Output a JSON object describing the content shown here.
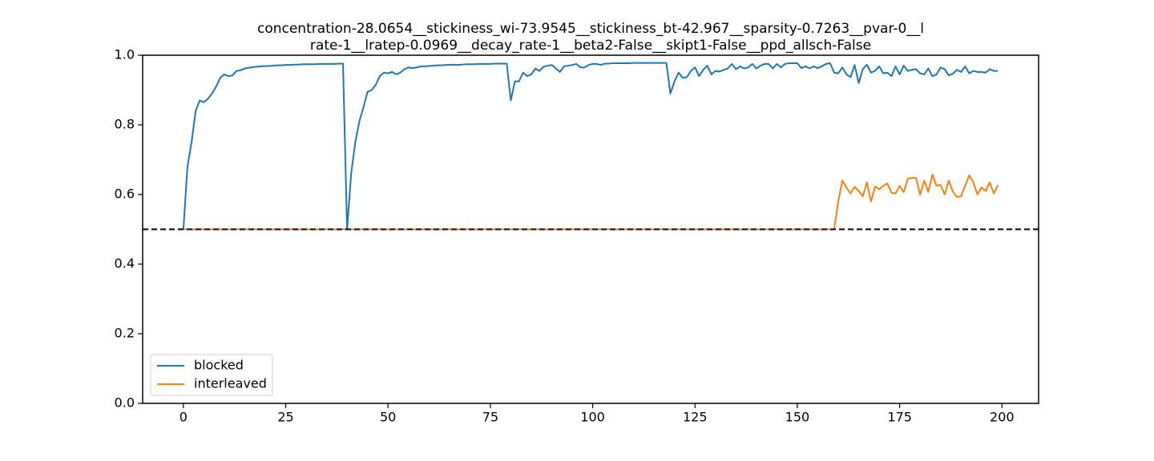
{
  "chart_data": {
    "type": "line",
    "title": [
      "concentration-28.0654__stickiness_wi-73.9545__stickiness_bt-42.967__sparsity-0.7263__pvar-0__l",
      "rate-1__lratep-0.0969__decay_rate-1__beta2-False__skipt1-False__ppd_allsch-False"
    ],
    "x": [
      0,
      1,
      2,
      3,
      4,
      5,
      6,
      7,
      8,
      9,
      10,
      11,
      12,
      13,
      14,
      15,
      16,
      17,
      18,
      19,
      20,
      21,
      22,
      23,
      24,
      25,
      26,
      27,
      28,
      29,
      30,
      31,
      32,
      33,
      34,
      35,
      36,
      37,
      38,
      39,
      40,
      41,
      42,
      43,
      44,
      45,
      46,
      47,
      48,
      49,
      50,
      51,
      52,
      53,
      54,
      55,
      56,
      57,
      58,
      59,
      60,
      61,
      62,
      63,
      64,
      65,
      66,
      67,
      68,
      69,
      70,
      71,
      72,
      73,
      74,
      75,
      76,
      77,
      78,
      79,
      80,
      81,
      82,
      83,
      84,
      85,
      86,
      87,
      88,
      89,
      90,
      91,
      92,
      93,
      94,
      95,
      96,
      97,
      98,
      99,
      100,
      101,
      102,
      103,
      104,
      105,
      106,
      107,
      108,
      109,
      110,
      111,
      112,
      113,
      114,
      115,
      116,
      117,
      118,
      119,
      120,
      121,
      122,
      123,
      124,
      125,
      126,
      127,
      128,
      129,
      130,
      131,
      132,
      133,
      134,
      135,
      136,
      137,
      138,
      139,
      140,
      141,
      142,
      143,
      144,
      145,
      146,
      147,
      148,
      149,
      150,
      151,
      152,
      153,
      154,
      155,
      156,
      157,
      158,
      159,
      160,
      161,
      162,
      163,
      164,
      165,
      166,
      167,
      168,
      169,
      170,
      171,
      172,
      173,
      174,
      175,
      176,
      177,
      178,
      179,
      180,
      181,
      182,
      183,
      184,
      185,
      186,
      187,
      188,
      189,
      190,
      191,
      192,
      193,
      194,
      195,
      196,
      197,
      198,
      199
    ],
    "series": [
      {
        "name": "blocked",
        "color": "#1f77b4",
        "values": [
          0.5,
          0.68,
          0.75,
          0.84,
          0.87,
          0.865,
          0.875,
          0.89,
          0.91,
          0.935,
          0.945,
          0.94,
          0.942,
          0.955,
          0.957,
          0.962,
          0.964,
          0.966,
          0.967,
          0.968,
          0.969,
          0.969,
          0.97,
          0.971,
          0.971,
          0.972,
          0.972,
          0.973,
          0.973,
          0.974,
          0.974,
          0.974,
          0.974,
          0.975,
          0.975,
          0.975,
          0.975,
          0.975,
          0.976,
          0.976,
          0.5,
          0.66,
          0.75,
          0.81,
          0.85,
          0.895,
          0.9,
          0.915,
          0.94,
          0.95,
          0.948,
          0.952,
          0.945,
          0.95,
          0.96,
          0.965,
          0.963,
          0.965,
          0.968,
          0.968,
          0.969,
          0.97,
          0.971,
          0.971,
          0.972,
          0.972,
          0.973,
          0.972,
          0.973,
          0.974,
          0.974,
          0.974,
          0.975,
          0.975,
          0.975,
          0.975,
          0.976,
          0.976,
          0.976,
          0.976,
          0.87,
          0.925,
          0.925,
          0.95,
          0.94,
          0.945,
          0.962,
          0.955,
          0.967,
          0.97,
          0.972,
          0.962,
          0.952,
          0.968,
          0.97,
          0.972,
          0.975,
          0.965,
          0.965,
          0.972,
          0.975,
          0.975,
          0.972,
          0.976,
          0.976,
          0.977,
          0.977,
          0.977,
          0.977,
          0.977,
          0.978,
          0.978,
          0.978,
          0.978,
          0.978,
          0.978,
          0.978,
          0.978,
          0.978,
          0.89,
          0.925,
          0.95,
          0.935,
          0.937,
          0.955,
          0.965,
          0.94,
          0.958,
          0.97,
          0.945,
          0.955,
          0.953,
          0.958,
          0.962,
          0.975,
          0.96,
          0.968,
          0.962,
          0.965,
          0.975,
          0.962,
          0.97,
          0.975,
          0.975,
          0.962,
          0.975,
          0.965,
          0.975,
          0.977,
          0.977,
          0.977,
          0.963,
          0.968,
          0.962,
          0.968,
          0.963,
          0.968,
          0.975,
          0.977,
          0.95,
          0.948,
          0.965,
          0.945,
          0.937,
          0.972,
          0.92,
          0.96,
          0.973,
          0.95,
          0.955,
          0.968,
          0.948,
          0.95,
          0.94,
          0.968,
          0.945,
          0.97,
          0.955,
          0.958,
          0.96,
          0.948,
          0.945,
          0.962,
          0.94,
          0.945,
          0.965,
          0.96,
          0.942,
          0.947,
          0.958,
          0.952,
          0.968,
          0.948,
          0.955,
          0.952,
          0.952,
          0.95,
          0.96,
          0.955,
          0.955
        ]
      },
      {
        "name": "interleaved",
        "color": "#ff7f0e",
        "values": [
          0.5,
          0.5,
          0.5,
          0.5,
          0.5,
          0.5,
          0.5,
          0.5,
          0.5,
          0.5,
          0.5,
          0.5,
          0.5,
          0.5,
          0.5,
          0.5,
          0.5,
          0.5,
          0.5,
          0.5,
          0.5,
          0.5,
          0.5,
          0.5,
          0.5,
          0.5,
          0.5,
          0.5,
          0.5,
          0.5,
          0.5,
          0.5,
          0.5,
          0.5,
          0.5,
          0.5,
          0.5,
          0.5,
          0.5,
          0.5,
          0.5,
          0.5,
          0.5,
          0.5,
          0.5,
          0.5,
          0.5,
          0.5,
          0.5,
          0.5,
          0.5,
          0.5,
          0.5,
          0.5,
          0.5,
          0.5,
          0.5,
          0.5,
          0.5,
          0.5,
          0.5,
          0.5,
          0.5,
          0.5,
          0.5,
          0.5,
          0.5,
          0.5,
          0.5,
          0.5,
          0.5,
          0.5,
          0.5,
          0.5,
          0.5,
          0.5,
          0.5,
          0.5,
          0.5,
          0.5,
          0.5,
          0.5,
          0.5,
          0.5,
          0.5,
          0.5,
          0.5,
          0.5,
          0.5,
          0.5,
          0.5,
          0.5,
          0.5,
          0.5,
          0.5,
          0.5,
          0.5,
          0.5,
          0.5,
          0.5,
          0.5,
          0.5,
          0.5,
          0.5,
          0.5,
          0.5,
          0.5,
          0.5,
          0.5,
          0.5,
          0.5,
          0.5,
          0.5,
          0.5,
          0.5,
          0.5,
          0.5,
          0.5,
          0.5,
          0.5,
          0.5,
          0.5,
          0.5,
          0.5,
          0.5,
          0.5,
          0.5,
          0.5,
          0.5,
          0.5,
          0.5,
          0.5,
          0.5,
          0.5,
          0.5,
          0.5,
          0.5,
          0.5,
          0.5,
          0.5,
          0.5,
          0.5,
          0.5,
          0.5,
          0.5,
          0.5,
          0.5,
          0.5,
          0.5,
          0.5,
          0.5,
          0.5,
          0.5,
          0.5,
          0.5,
          0.5,
          0.5,
          0.5,
          0.5,
          0.5,
          0.58,
          0.64,
          0.62,
          0.603,
          0.622,
          0.61,
          0.595,
          0.635,
          0.58,
          0.623,
          0.615,
          0.625,
          0.632,
          0.605,
          0.603,
          0.625,
          0.607,
          0.645,
          0.648,
          0.648,
          0.6,
          0.64,
          0.607,
          0.657,
          0.625,
          0.628,
          0.6,
          0.64,
          0.608,
          0.593,
          0.595,
          0.625,
          0.655,
          0.635,
          0.6,
          0.62,
          0.61,
          0.635,
          0.603,
          0.627
        ]
      }
    ],
    "reference_line": 0.5,
    "xlim": [
      -9.95,
      208.95
    ],
    "xticks": [
      0,
      25,
      50,
      75,
      100,
      125,
      150,
      175,
      200
    ],
    "ylim": [
      0,
      1
    ],
    "yticks": [
      {
        "value": 0,
        "label": "0.0"
      },
      0.2,
      0.4,
      0.6,
      0.8,
      {
        "value": 1,
        "label": "1.0"
      }
    ],
    "legend": "lower left"
  }
}
